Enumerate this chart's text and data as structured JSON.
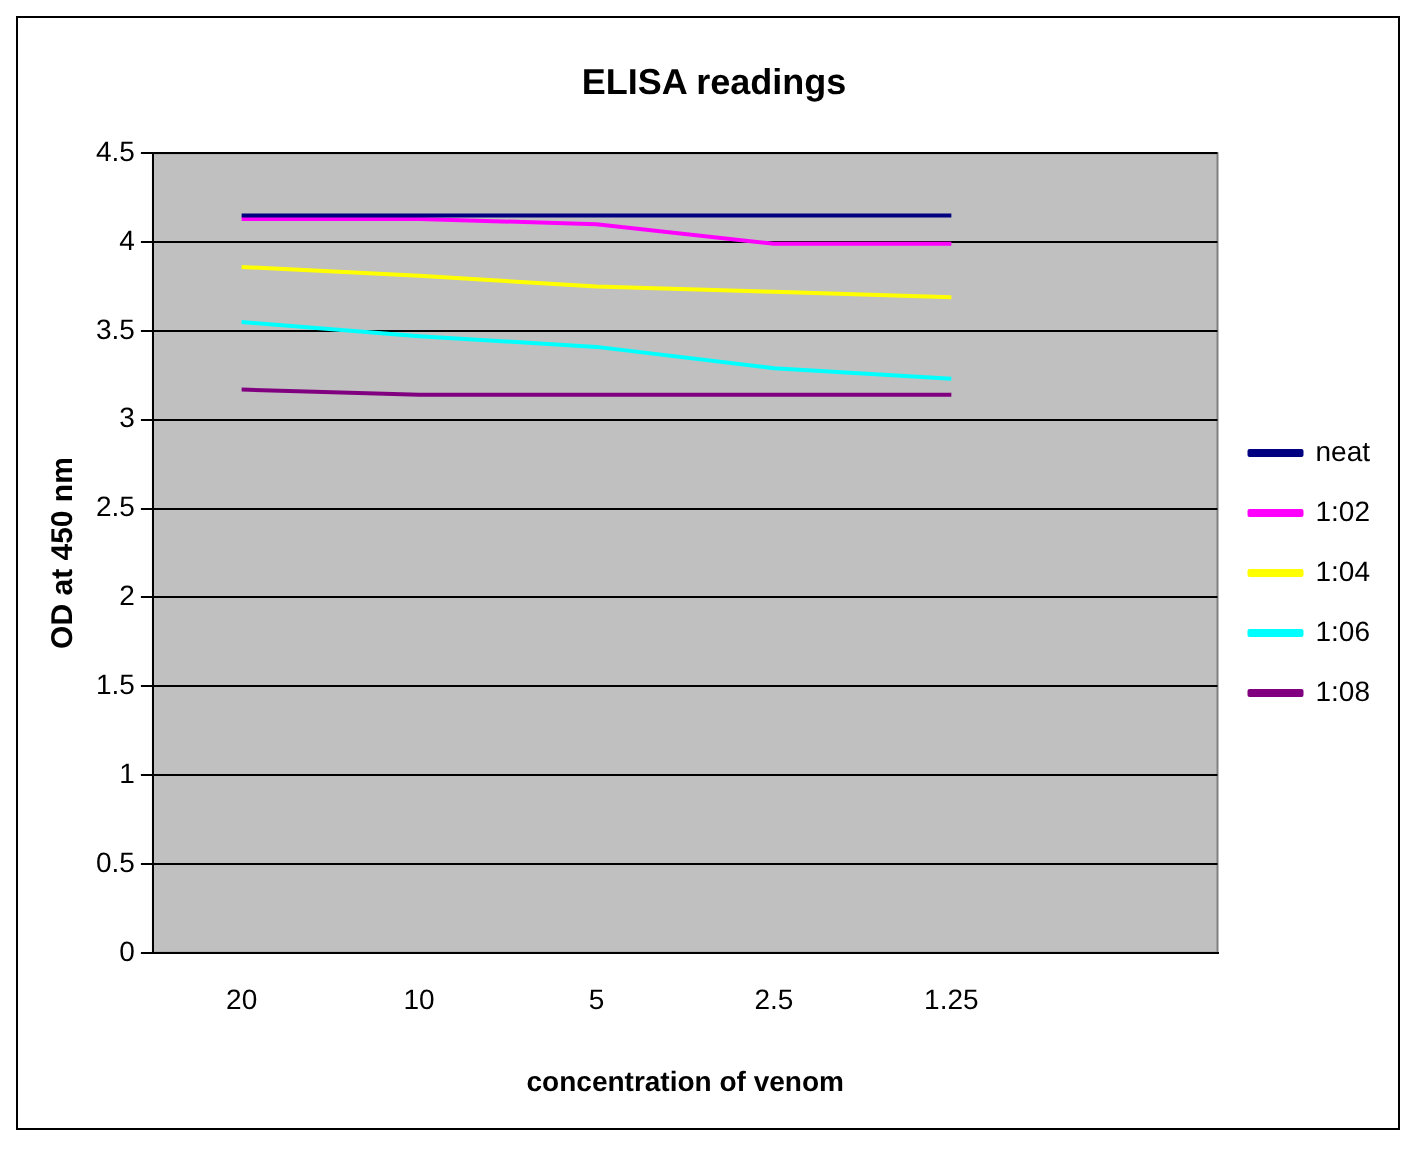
{
  "chart_data": {
    "type": "line",
    "title": "ELISA readings",
    "xlabel": "concentration of venom",
    "ylabel": "OD at 450 nm",
    "categories": [
      "20",
      "10",
      "5",
      "2.5",
      "1.25",
      null
    ],
    "series": [
      {
        "name": "neat",
        "color": "#000080",
        "values": [
          4.15,
          4.15,
          4.15,
          4.15,
          4.15,
          null
        ]
      },
      {
        "name": "1:02",
        "color": "#ff00ff",
        "values": [
          4.13,
          4.13,
          4.1,
          3.99,
          3.99,
          null
        ]
      },
      {
        "name": "1:04",
        "color": "#ffff00",
        "values": [
          3.86,
          3.81,
          3.75,
          3.72,
          3.69,
          null
        ]
      },
      {
        "name": "1:06",
        "color": "#00ffff",
        "values": [
          3.55,
          3.47,
          3.41,
          3.29,
          3.23,
          null
        ]
      },
      {
        "name": "1:08",
        "color": "#800080",
        "values": [
          3.17,
          3.14,
          3.14,
          3.14,
          3.14,
          null
        ]
      }
    ],
    "ylim": [
      0,
      4.5
    ],
    "yticks": [
      0,
      0.5,
      1,
      1.5,
      2,
      2.5,
      3,
      3.5,
      4,
      4.5
    ],
    "grid": "y",
    "legend": "right",
    "marker": "none",
    "line_style": "solid"
  }
}
